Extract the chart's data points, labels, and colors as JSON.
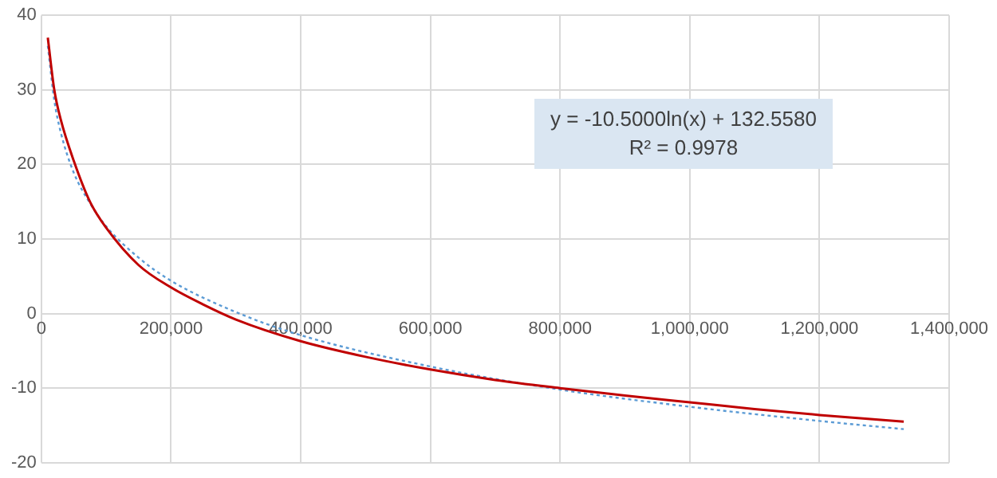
{
  "chart_data": {
    "type": "line",
    "series": [
      {
        "color": "#c00000",
        "x": [
          10000,
          20000,
          30000,
          50000,
          75000,
          100000,
          150000,
          200000,
          250000,
          300000,
          400000,
          500000,
          600000,
          700000,
          800000,
          900000,
          1000000,
          1100000,
          1200000,
          1330000
        ],
        "values": [
          37,
          30,
          26,
          20.5,
          15,
          11.5,
          6.5,
          3.5,
          1.2,
          -0.8,
          -3.7,
          -5.8,
          -7.5,
          -8.9,
          -10,
          -11,
          -11.9,
          -12.8,
          -13.6,
          -14.5
        ]
      },
      {
        "color": "#5b9bd5",
        "line_style": "dotted",
        "x": [
          10000,
          20000,
          30000,
          50000,
          75000,
          100000,
          150000,
          200000,
          300000,
          400000,
          600000,
          800000,
          1000000,
          1200000,
          1330000
        ],
        "values": [
          35.9,
          28.6,
          24.3,
          18.9,
          14.8,
          11.7,
          7.5,
          4.4,
          0.2,
          -2.9,
          -7.1,
          -10.2,
          -12.5,
          -14.4,
          -15.5
        ]
      }
    ],
    "xlim": [
      0,
      1400000
    ],
    "xticks": [
      {
        "value": 0,
        "label": "0"
      },
      {
        "value": 200000,
        "label": "200,000"
      },
      {
        "value": 400000,
        "label": "400,000"
      },
      {
        "value": 600000,
        "label": "600,000"
      },
      {
        "value": 800000,
        "label": "800,000"
      },
      {
        "value": 1000000,
        "label": "1,000,000"
      },
      {
        "value": 1200000,
        "label": "1,200,000"
      },
      {
        "value": 1400000,
        "label": "1,400,000"
      }
    ],
    "ylim": [
      -20,
      40
    ],
    "yticks": [
      -20,
      -10,
      0,
      10,
      20,
      30,
      40
    ],
    "grid": true,
    "marker": "none",
    "line_style": "solid",
    "annotations": [
      "y = -10.5000ln(x) + 132.5580",
      "R² = 0.9978"
    ]
  }
}
